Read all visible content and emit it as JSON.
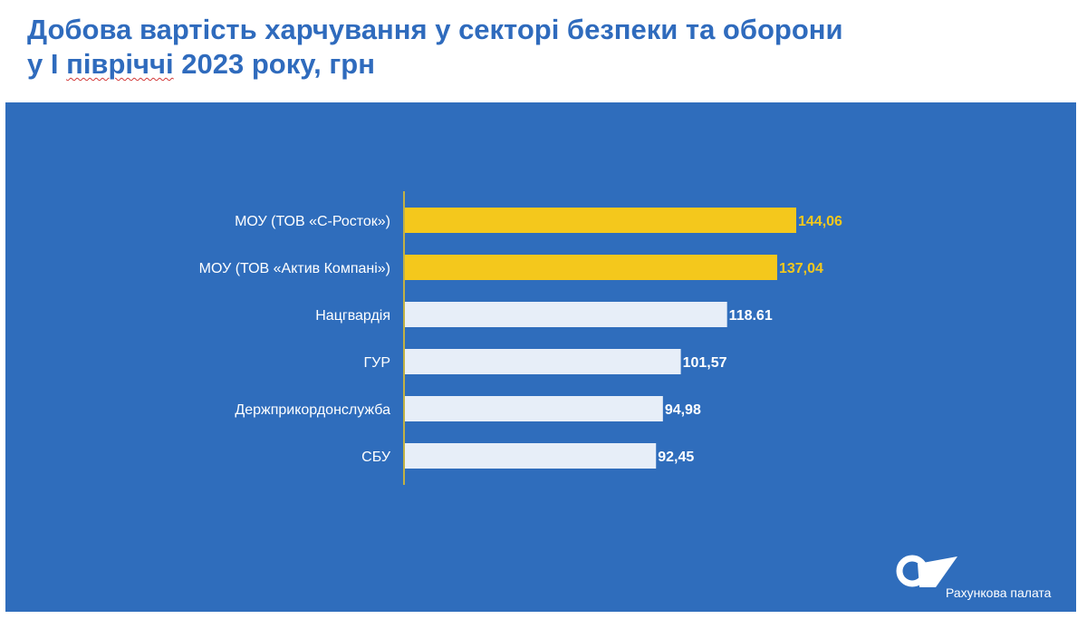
{
  "title": {
    "line1": "Добова вартість харчування у секторі безпеки та оборони",
    "line2_prefix": "у І ",
    "line2_underlined": "півріччі",
    "line2_suffix": " 2023 року, грн"
  },
  "colors": {
    "panel": "#2f6dbc",
    "highlight_bar": "#f4c81c",
    "default_bar": "#e7eef8",
    "highlight_label": "#f4c81c",
    "default_label": "#ffffff",
    "axis_line": "#f4c81c",
    "title": "#2f6bbd"
  },
  "chart_data": {
    "type": "bar",
    "orientation": "horizontal",
    "categories": [
      "МОУ (ТОВ «С-Росток»)",
      "МОУ (ТОВ «Актив Компані»)",
      "Нацгвардія",
      "ГУР",
      "Держприкордонслужба",
      "СБУ"
    ],
    "values": [
      144.06,
      137.04,
      118.61,
      101.57,
      94.98,
      92.45
    ],
    "value_labels": [
      "144,06",
      "137,04",
      "118.61",
      "101,57",
      "94,98",
      "92,45"
    ],
    "highlighted": [
      true,
      true,
      false,
      false,
      false,
      false
    ],
    "xlim": [
      0,
      150
    ],
    "grid": false,
    "legend": "none"
  },
  "logo": {
    "name": "rakhunkova-palata-logo-icon",
    "text": "Рахункова палата"
  }
}
